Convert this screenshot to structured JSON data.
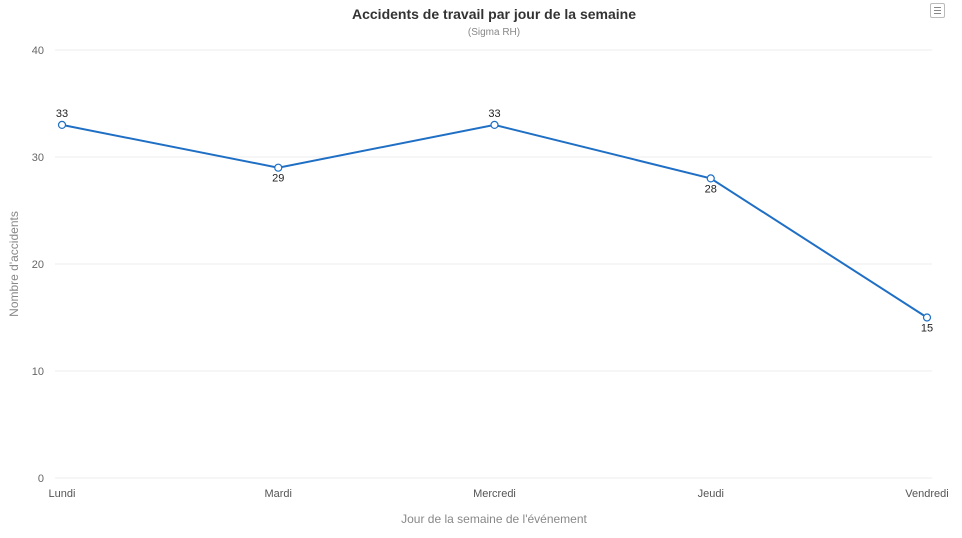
{
  "header": {
    "title": "Accidents de travail par jour de la semaine",
    "subtitle": "(Sigma RH)",
    "menu_icon": "hamburger-menu-icon"
  },
  "colors": {
    "series": "#1f6fc5",
    "grid": "#eeeeee",
    "marker_fill": "#ffffff"
  },
  "chart_data": {
    "type": "line",
    "title": "Accidents de travail par jour de la semaine",
    "subtitle": "(Sigma RH)",
    "xlabel": "Jour de la semaine de l'événement",
    "ylabel": "Nombre d'accidents",
    "categories": [
      "Lundi",
      "Mardi",
      "Mercredi",
      "Jeudi",
      "Vendredi"
    ],
    "series": [
      {
        "name": "Nombre d'accidents",
        "values": [
          33,
          29,
          33,
          28,
          15
        ]
      }
    ],
    "ylim": [
      0,
      40
    ],
    "yticks": [
      0,
      10,
      20,
      30,
      40
    ],
    "grid": true,
    "data_labels": true,
    "legend": "none"
  }
}
